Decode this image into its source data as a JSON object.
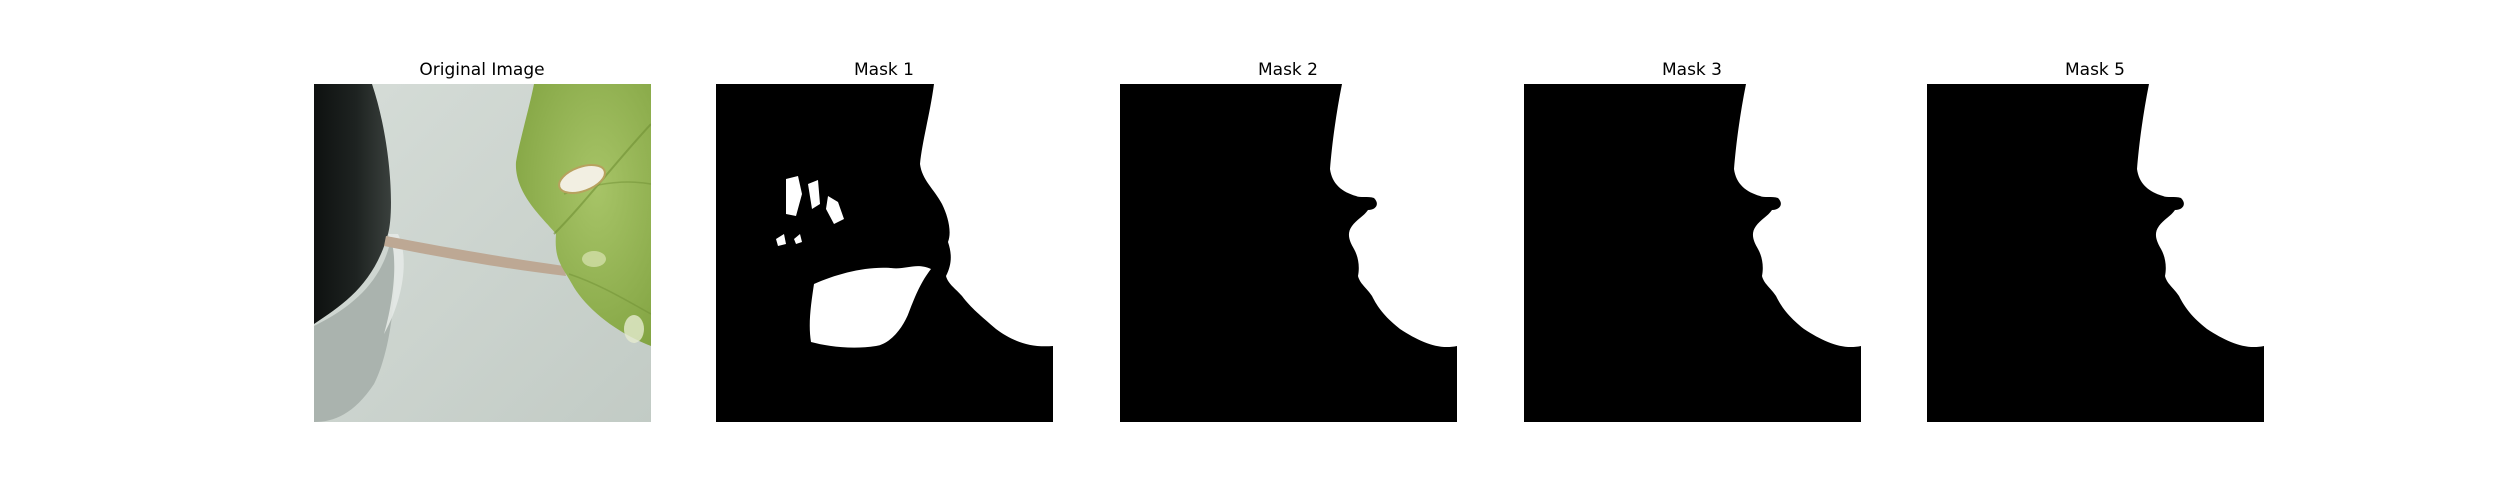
{
  "figure": {
    "panels": [
      {
        "title": "Original Image",
        "content": "photo"
      },
      {
        "title": "Mask 1",
        "content": "mask"
      },
      {
        "title": "Mask 2",
        "content": "mask"
      },
      {
        "title": "Mask 3",
        "content": "mask"
      },
      {
        "title": "Mask 5",
        "content": "mask"
      }
    ]
  },
  "colors": {
    "mask_background": "#000000",
    "mask_foreground": "#ffffff",
    "leaf_green": "#8db04e",
    "wall": "#cfd6d1"
  }
}
